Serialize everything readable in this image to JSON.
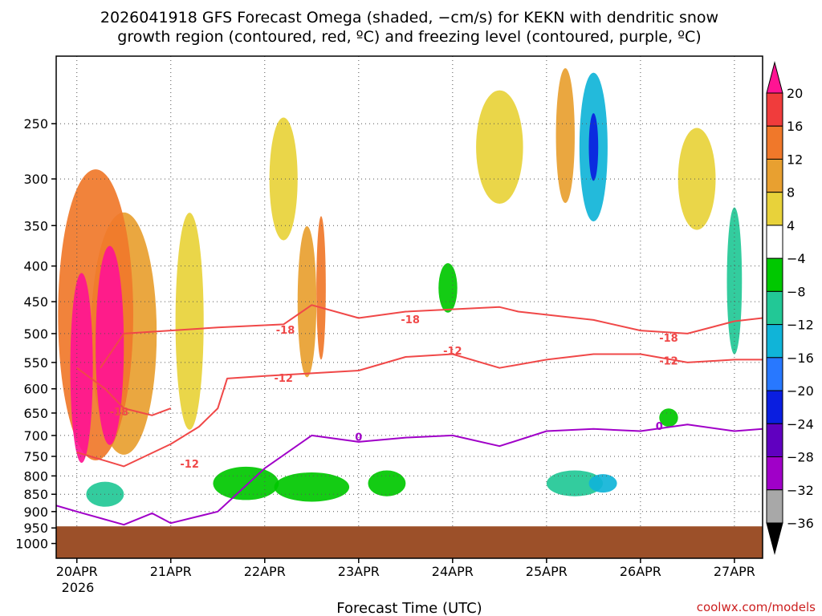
{
  "chart_data": {
    "type": "heatmap",
    "title_lines": [
      "2026041918 GFS Forecast Omega (shaded, −cm/s) for KEKN with dendritic snow",
      "growth region (contoured, red, ºC) and freezing level (contoured, purple, ºC)"
    ],
    "xlabel": "Forecast Time (UTC)",
    "ylabel": "",
    "credit": "coolwx.com/models",
    "x_ticks": [
      "20APR",
      "21APR",
      "22APR",
      "23APR",
      "24APR",
      "25APR",
      "26APR",
      "27APR"
    ],
    "x_year": "2026",
    "y_axis": {
      "ticks": [
        "250",
        "300",
        "350",
        "400",
        "450",
        "500",
        "550",
        "600",
        "650",
        "700",
        "750",
        "800",
        "850",
        "900",
        "950",
        "1000"
      ],
      "ylim": [
        1050,
        200
      ],
      "scale": "log-pressure"
    },
    "colorbar": {
      "labels": [
        "20",
        "16",
        "12",
        "8",
        "4",
        "−4",
        "−8",
        "−12",
        "−16",
        "−20",
        "−24",
        "−28",
        "−32",
        "−36"
      ],
      "colors": [
        "#ff1493",
        "#f03c3c",
        "#f0782a",
        "#e8a030",
        "#e8d23a",
        "#ffffff",
        "#00c800",
        "#22c896",
        "#10b4d8",
        "#2878ff",
        "#0a1ee0",
        "#6000c0",
        "#a000c8",
        "#a8a8a8",
        "#000000"
      ]
    },
    "ground_color": "#9c5029",
    "ground_level_hpa": 945,
    "contours": [
      {
        "name": "dgz -18ºC",
        "color": "#f04848",
        "label": "-18",
        "points": [
          [
            0.25,
            560
          ],
          [
            0.5,
            500
          ],
          [
            1.5,
            490
          ],
          [
            2.2,
            485
          ],
          [
            2.5,
            455
          ],
          [
            3.0,
            475
          ],
          [
            3.5,
            465
          ],
          [
            4.5,
            458
          ],
          [
            4.7,
            465
          ],
          [
            5.5,
            478
          ],
          [
            6.0,
            495
          ],
          [
            6.5,
            500
          ],
          [
            7.0,
            480
          ],
          [
            7.3,
            475
          ]
        ],
        "label_at": [
          [
            2.22,
            495
          ],
          [
            3.55,
            478
          ],
          [
            6.3,
            508
          ]
        ]
      },
      {
        "name": "dgz -12ºC",
        "color": "#f04848",
        "label": "-12",
        "points": [
          [
            0.0,
            740
          ],
          [
            0.5,
            775
          ],
          [
            1.0,
            720
          ],
          [
            1.3,
            680
          ],
          [
            1.5,
            640
          ],
          [
            1.6,
            580
          ],
          [
            2.0,
            575
          ],
          [
            2.5,
            570
          ],
          [
            3.0,
            565
          ],
          [
            3.5,
            540
          ],
          [
            4.0,
            535
          ],
          [
            4.5,
            560
          ],
          [
            5.0,
            545
          ],
          [
            5.5,
            535
          ],
          [
            6.0,
            535
          ],
          [
            6.5,
            550
          ],
          [
            7.0,
            545
          ],
          [
            7.3,
            545
          ]
        ],
        "label_at": [
          [
            1.2,
            770
          ],
          [
            2.2,
            580
          ],
          [
            4.0,
            530
          ],
          [
            6.3,
            548
          ]
        ]
      },
      {
        "name": "dgz -18ºC lower",
        "color": "#f04848",
        "label": "-18",
        "points": [
          [
            0.0,
            560
          ],
          [
            0.3,
            600
          ],
          [
            0.5,
            640
          ],
          [
            0.8,
            655
          ],
          [
            1.0,
            640
          ]
        ],
        "label_at": [
          [
            0.45,
            648
          ]
        ]
      },
      {
        "name": "freezing level 0ºC",
        "color": "#a000c8",
        "label": "0",
        "points": [
          [
            -0.25,
            880
          ],
          [
            0.0,
            900
          ],
          [
            0.5,
            940
          ],
          [
            0.8,
            905
          ],
          [
            1.0,
            935
          ],
          [
            1.5,
            900
          ],
          [
            2.0,
            780
          ],
          [
            2.5,
            700
          ],
          [
            3.0,
            715
          ],
          [
            3.5,
            705
          ],
          [
            4.0,
            700
          ],
          [
            4.5,
            725
          ],
          [
            5.0,
            690
          ],
          [
            5.5,
            685
          ],
          [
            6.0,
            690
          ],
          [
            6.5,
            675
          ],
          [
            7.0,
            690
          ],
          [
            7.3,
            685
          ]
        ],
        "label_at": [
          [
            3.0,
            705
          ],
          [
            6.2,
            680
          ]
        ]
      }
    ],
    "omega_blobs": [
      {
        "t": 0.05,
        "p": 560,
        "rt": 0.12,
        "rp": 340,
        "value": 20
      },
      {
        "t": 0.35,
        "p": 520,
        "rt": 0.15,
        "rp": 330,
        "value": 20
      },
      {
        "t": 0.2,
        "p": 470,
        "rt": 0.4,
        "rp": 420,
        "value": 14
      },
      {
        "t": 0.5,
        "p": 500,
        "rt": 0.35,
        "rp": 380,
        "value": 8
      },
      {
        "t": 1.2,
        "p": 480,
        "rt": 0.15,
        "rp": 330,
        "value": 5
      },
      {
        "t": 2.45,
        "p": 450,
        "rt": 0.1,
        "rp": 220,
        "value": 10
      },
      {
        "t": 2.6,
        "p": 430,
        "rt": 0.05,
        "rp": 200,
        "value": 14
      },
      {
        "t": 2.2,
        "p": 300,
        "rt": 0.15,
        "rp": 120,
        "value": 5
      },
      {
        "t": 4.5,
        "p": 270,
        "rt": 0.25,
        "rp": 100,
        "value": 6
      },
      {
        "t": 5.2,
        "p": 260,
        "rt": 0.1,
        "rp": 120,
        "value": 10
      },
      {
        "t": 6.6,
        "p": 300,
        "rt": 0.2,
        "rp": 100,
        "value": 6
      },
      {
        "t": 1.8,
        "p": 820,
        "rt": 0.35,
        "rp": 90,
        "value": -6
      },
      {
        "t": 2.5,
        "p": 830,
        "rt": 0.4,
        "rp": 80,
        "value": -7
      },
      {
        "t": 3.3,
        "p": 820,
        "rt": 0.2,
        "rp": 70,
        "value": -6
      },
      {
        "t": 5.3,
        "p": 820,
        "rt": 0.3,
        "rp": 70,
        "value": -8
      },
      {
        "t": 5.6,
        "p": 820,
        "rt": 0.15,
        "rp": 50,
        "value": -12
      },
      {
        "t": 5.5,
        "p": 270,
        "rt": 0.15,
        "rp": 130,
        "value": -12
      },
      {
        "t": 5.5,
        "p": 270,
        "rt": 0.05,
        "rp": 60,
        "value": -22
      },
      {
        "t": 0.3,
        "p": 850,
        "rt": 0.2,
        "rp": 70,
        "value": -10
      },
      {
        "t": 3.95,
        "p": 430,
        "rt": 0.1,
        "rp": 70,
        "value": -6
      },
      {
        "t": 7.0,
        "p": 420,
        "rt": 0.08,
        "rp": 200,
        "value": -10
      },
      {
        "t": 6.3,
        "p": 660,
        "rt": 0.1,
        "rp": 40,
        "value": -6
      }
    ]
  }
}
